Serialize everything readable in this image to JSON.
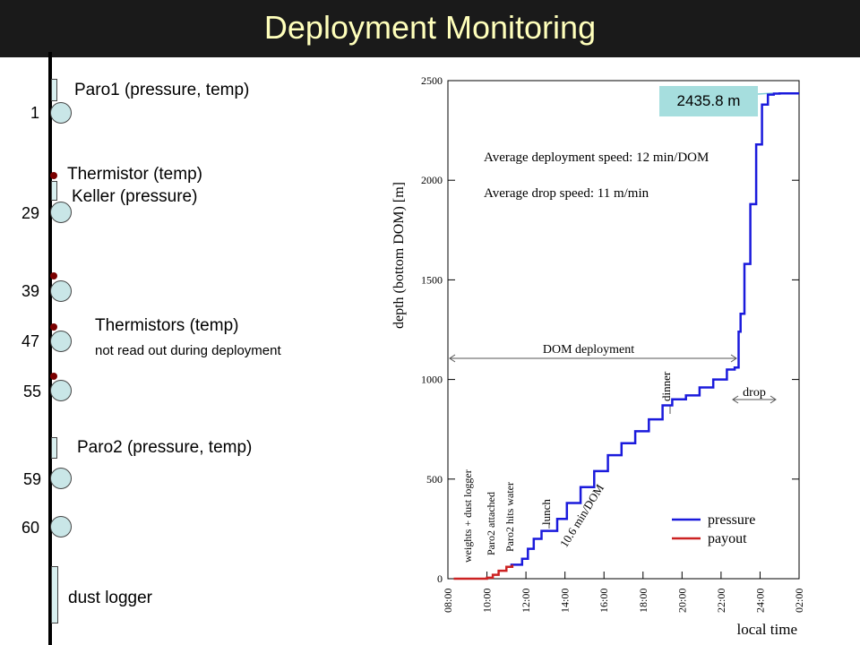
{
  "title": "Deployment Monitoring",
  "string": {
    "doms": [
      {
        "number": "1"
      },
      {
        "number": "29"
      },
      {
        "number": "39"
      },
      {
        "number": "47"
      },
      {
        "number": "55"
      },
      {
        "number": "59"
      },
      {
        "number": "60"
      }
    ],
    "labels": {
      "paro1": "Paro1 (pressure, temp)",
      "thermistor": "Thermistor (temp)",
      "keller": "Keller (pressure)",
      "thermistors": "Thermistors (temp)",
      "not_read": "not read out during deployment",
      "paro2": "Paro2 (pressure, temp)",
      "dust_logger": "dust logger"
    },
    "colors": {
      "dom": "#c9e6e7",
      "thermistor": "#7a0000",
      "cable": "#000000"
    }
  },
  "depth_box": "2435.8 m",
  "chart_data": {
    "type": "line",
    "ylabel": "depth (bottom DOM) [m]",
    "xlabel": "local time",
    "ylim": [
      0,
      2500
    ],
    "xlim": [
      8,
      26
    ],
    "yticks": [
      0,
      500,
      1000,
      1500,
      2000,
      2500
    ],
    "ytick_labels": [
      "0",
      "500",
      "1000",
      "1500",
      "2000",
      "2500"
    ],
    "xticks": [
      8,
      10,
      12,
      14,
      16,
      18,
      20,
      22,
      24,
      26
    ],
    "xtick_labels": [
      "08:00",
      "10:00",
      "12:00",
      "14:00",
      "16:00",
      "18:00",
      "20:00",
      "22:00",
      "24:00",
      "02:00"
    ],
    "series": [
      {
        "name": "pressure",
        "color": "#1a1adc",
        "x": [
          11.2,
          11.3,
          11.5,
          11.8,
          12.1,
          12.4,
          12.8,
          13.1,
          13.6,
          14.1,
          14.8,
          15.5,
          16.2,
          16.9,
          17.6,
          18.3,
          19.0,
          19.5,
          20.2,
          20.9,
          21.6,
          22.3,
          22.7,
          22.9,
          23.0,
          23.2,
          23.5,
          23.8,
          24.1,
          24.4,
          24.7,
          25.0,
          26.0
        ],
        "y": [
          70,
          70,
          70,
          100,
          150,
          200,
          240,
          240,
          300,
          380,
          460,
          540,
          620,
          680,
          740,
          800,
          870,
          900,
          920,
          960,
          1000,
          1050,
          1060,
          1240,
          1330,
          1580,
          1880,
          2180,
          2380,
          2430,
          2435,
          2436,
          2436
        ]
      },
      {
        "name": "payout",
        "color": "#cc2222",
        "x": [
          8.3,
          9.0,
          9.5,
          10.0,
          10.3,
          10.6,
          11.0,
          11.3
        ],
        "y": [
          0,
          0,
          0,
          5,
          20,
          40,
          60,
          70
        ]
      }
    ],
    "annotations": [
      "Average deployment speed: 12 min/DOM",
      "Average drop speed: 11 m/min",
      "DOM deployment",
      "drop",
      "dinner",
      "lunch",
      "weights + dust logger",
      "Paro2 attached",
      "Paro2 hits water",
      "10.6 min/DOM"
    ],
    "legend": "bottom-right"
  }
}
